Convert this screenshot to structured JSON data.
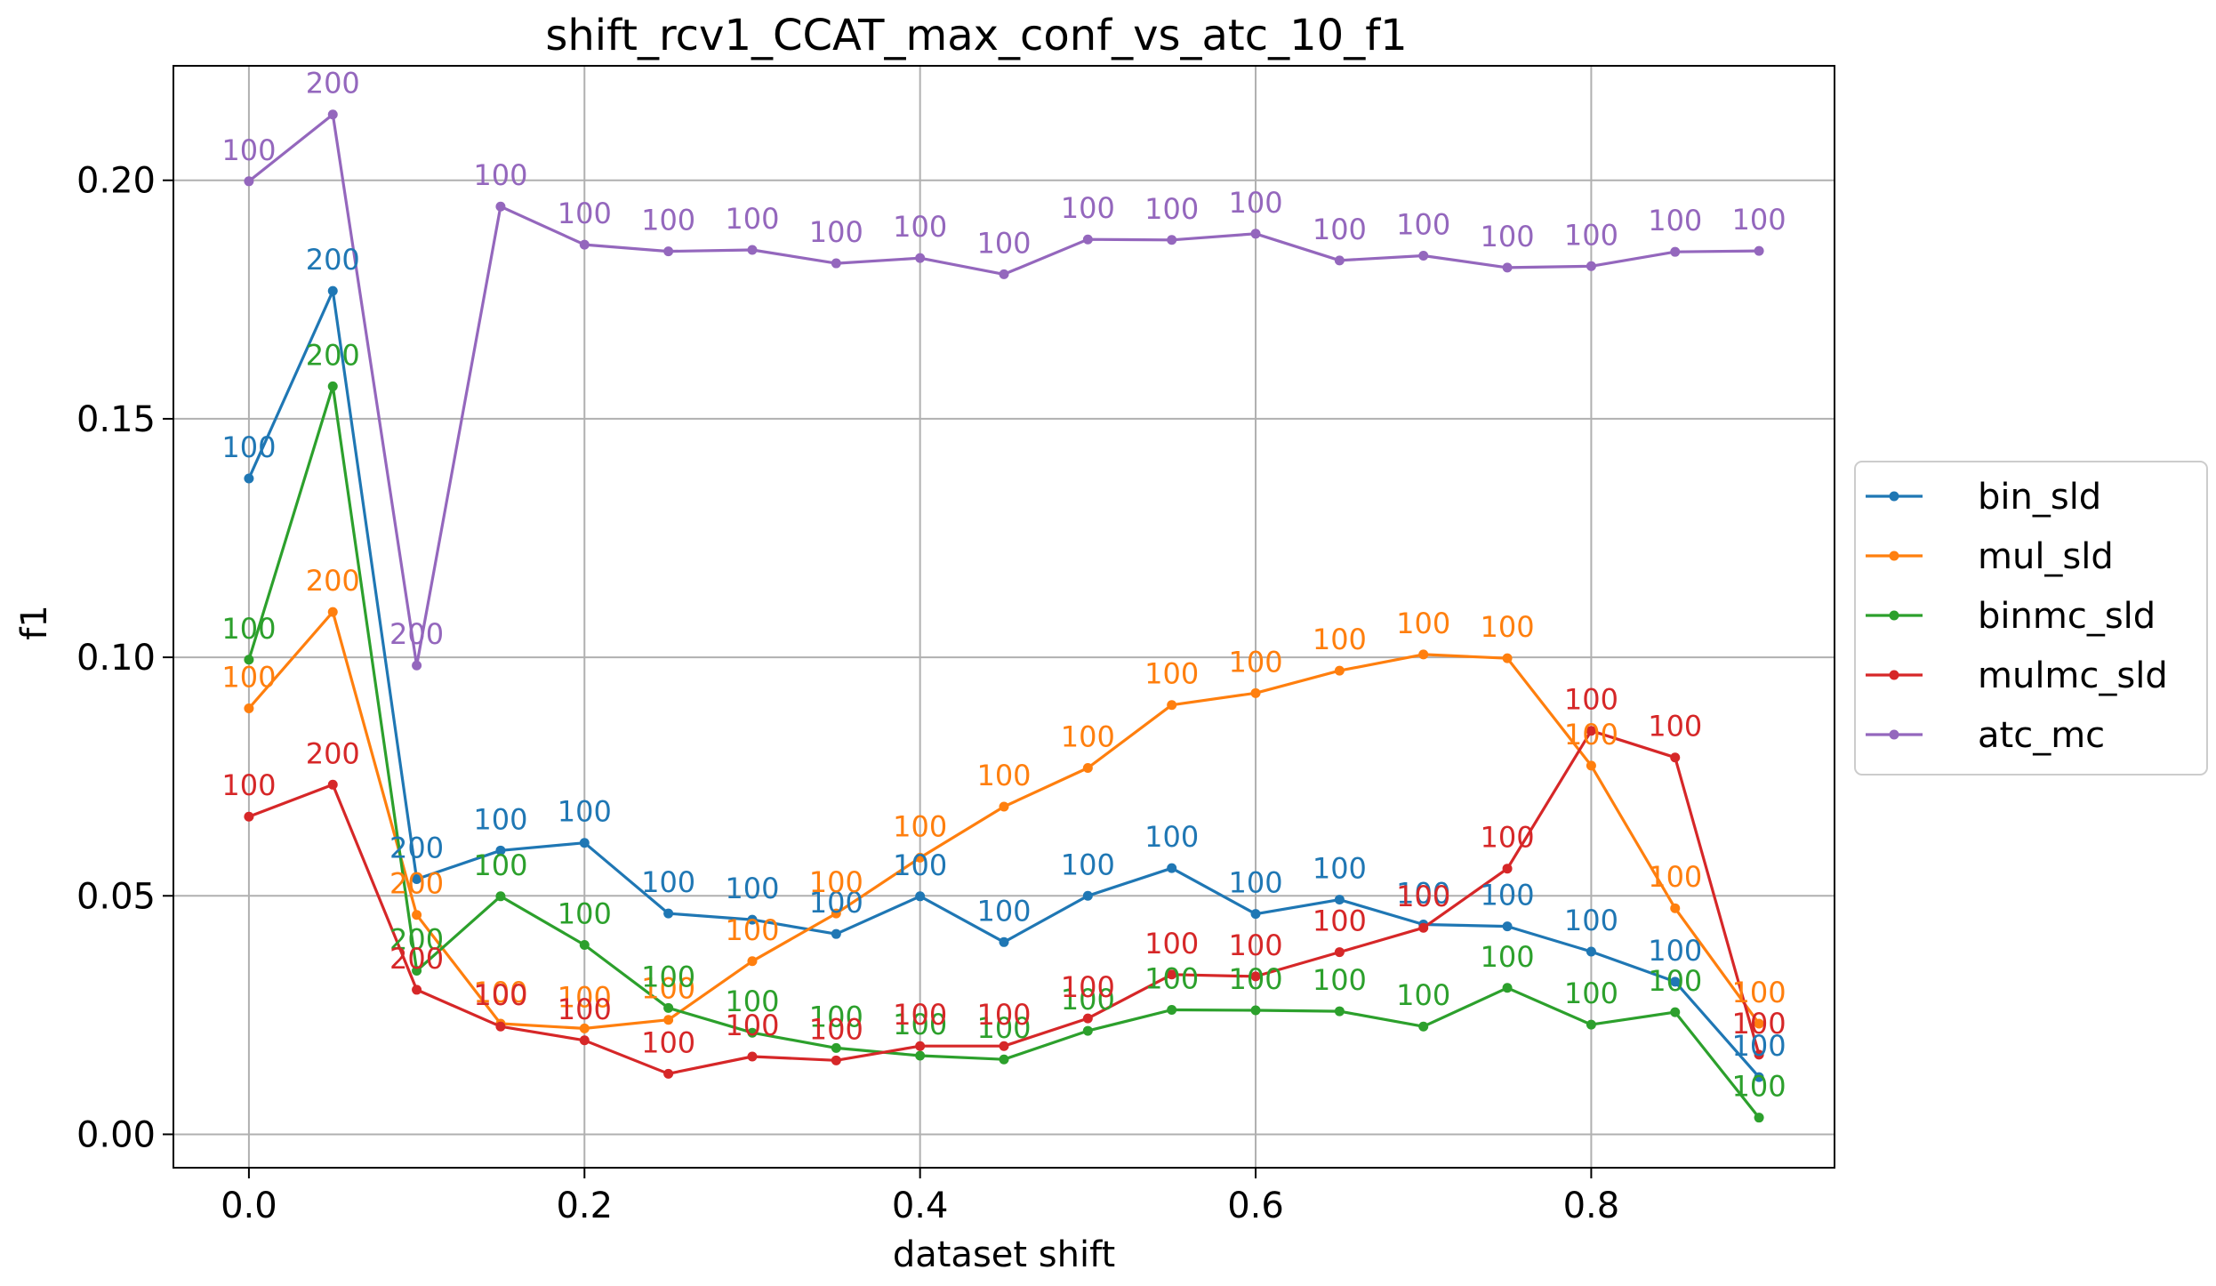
{
  "chart_data": {
    "type": "line",
    "title": "shift_rcv1_CCAT_max_conf_vs_atc_10_f1",
    "xlabel": "dataset shift",
    "ylabel": "f1",
    "xlim": [
      -0.045,
      0.945
    ],
    "ylim": [
      -0.007,
      0.224
    ],
    "xticks": [
      0.0,
      0.2,
      0.4,
      0.6,
      0.8
    ],
    "xtick_labels": [
      "0.0",
      "0.2",
      "0.4",
      "0.6",
      "0.8"
    ],
    "yticks": [
      0.0,
      0.05,
      0.1,
      0.15,
      0.2
    ],
    "ytick_labels": [
      "0.00",
      "0.05",
      "0.10",
      "0.15",
      "0.20"
    ],
    "grid": true,
    "legend_position": "center-right-outside",
    "x": [
      0.0,
      0.05,
      0.1,
      0.15,
      0.2,
      0.25,
      0.3,
      0.35,
      0.4,
      0.45,
      0.5,
      0.55,
      0.6,
      0.65,
      0.7,
      0.75,
      0.8,
      0.85,
      0.9
    ],
    "series": [
      {
        "name": "bin_sld",
        "color": "#1f77b4",
        "values": [
          0.1375,
          0.1768,
          0.0535,
          0.0595,
          0.0611,
          0.0463,
          0.045,
          0.042,
          0.0499,
          0.0403,
          0.05,
          0.0558,
          0.0462,
          0.0492,
          0.044,
          0.0436,
          0.0383,
          0.032,
          0.012
        ],
        "labels": [
          "100",
          "200",
          "200",
          "100",
          "100",
          "100",
          "100",
          "100",
          "100",
          "100",
          "100",
          "100",
          "100",
          "100",
          "100",
          "100",
          "100",
          "100",
          "100"
        ]
      },
      {
        "name": "mul_sld",
        "color": "#ff7f0e",
        "values": [
          0.0893,
          0.1095,
          0.046,
          0.0232,
          0.0222,
          0.024,
          0.0363,
          0.0463,
          0.058,
          0.0687,
          0.0768,
          0.09,
          0.0925,
          0.0972,
          0.1006,
          0.0998,
          0.0773,
          0.0474,
          0.0232
        ],
        "labels": [
          "100",
          "200",
          "200",
          "100",
          "100",
          "100",
          "100",
          "100",
          "100",
          "100",
          "100",
          "100",
          "100",
          "100",
          "100",
          "100",
          "100",
          "100",
          "100"
        ]
      },
      {
        "name": "binmc_sld",
        "color": "#2ca02c",
        "values": [
          0.0995,
          0.1568,
          0.0343,
          0.0499,
          0.0397,
          0.0265,
          0.0213,
          0.0181,
          0.0165,
          0.0157,
          0.0217,
          0.0261,
          0.026,
          0.0258,
          0.0226,
          0.0307,
          0.023,
          0.0256,
          0.0035
        ],
        "labels": [
          "100",
          "200",
          "200",
          "100",
          "100",
          "100",
          "100",
          "100",
          "100",
          "100",
          "100",
          "100",
          "100",
          "100",
          "100",
          "100",
          "100",
          "100",
          "100"
        ]
      },
      {
        "name": "mulmc_sld",
        "color": "#d62728",
        "values": [
          0.0666,
          0.0733,
          0.0303,
          0.0226,
          0.0197,
          0.0127,
          0.0163,
          0.0155,
          0.0185,
          0.0185,
          0.0243,
          0.0335,
          0.0331,
          0.0382,
          0.0433,
          0.0557,
          0.0846,
          0.079,
          0.0167
        ],
        "labels": [
          "100",
          "200",
          "200",
          "100",
          "100",
          "100",
          "100",
          "100",
          "100",
          "100",
          "100",
          "100",
          "100",
          "100",
          "100",
          "100",
          "100",
          "100",
          "100"
        ]
      },
      {
        "name": "atc_mc",
        "color": "#9467bd",
        "values": [
          0.1998,
          0.2138,
          0.0983,
          0.1945,
          0.1865,
          0.1851,
          0.1854,
          0.1826,
          0.1837,
          0.1803,
          0.1876,
          0.1875,
          0.1888,
          0.1832,
          0.1842,
          0.1817,
          0.182,
          0.185,
          0.1852
        ],
        "labels": [
          "100",
          "200",
          "200",
          "100",
          "100",
          "100",
          "100",
          "100",
          "100",
          "100",
          "100",
          "100",
          "100",
          "100",
          "100",
          "100",
          "100",
          "100",
          "100"
        ]
      }
    ]
  }
}
